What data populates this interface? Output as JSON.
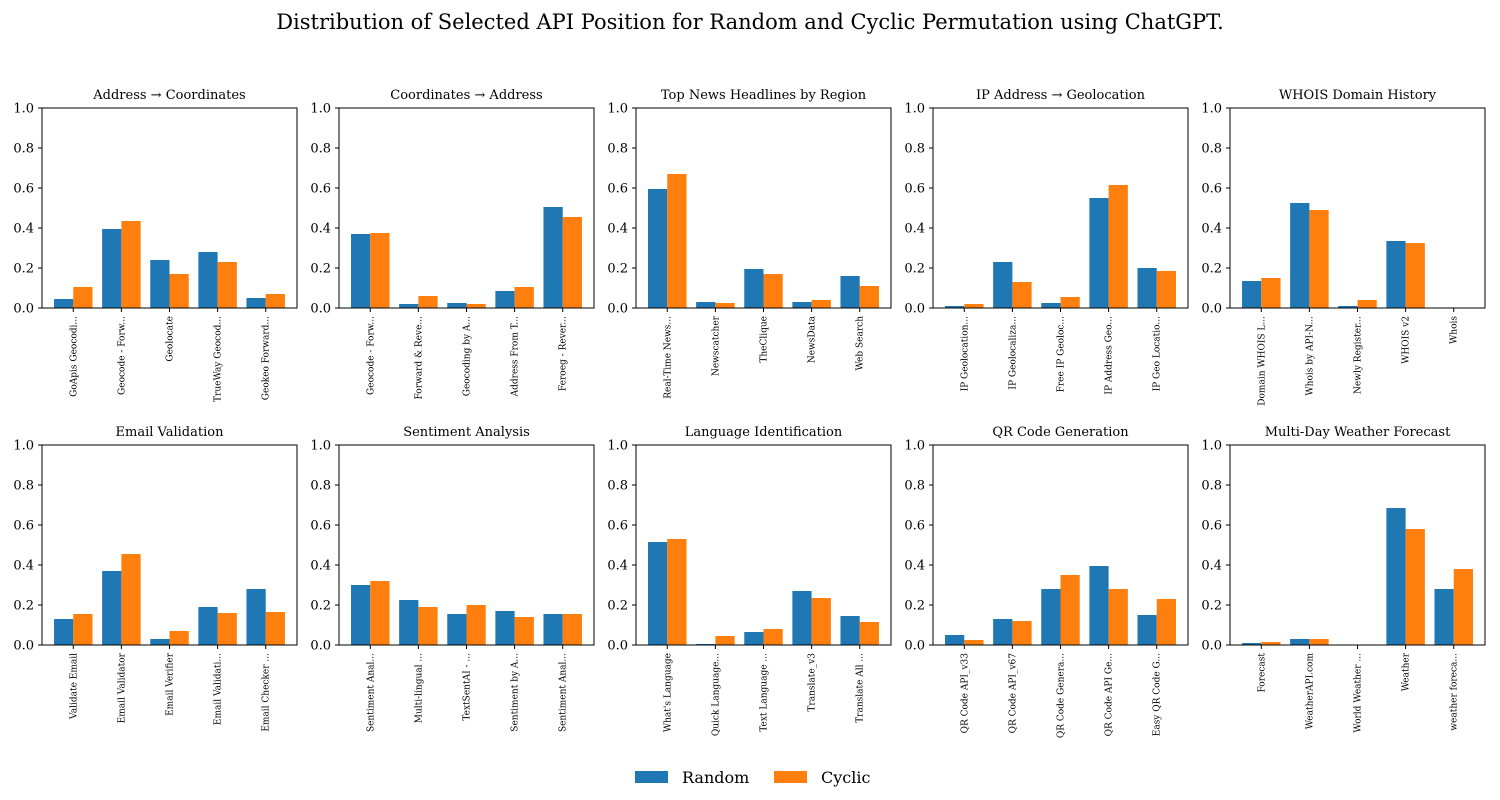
{
  "figure": {
    "title": "Distribution of Selected API Position for Random and Cyclic Permutation using ChatGPT."
  },
  "colors": {
    "random": "#1f77b4",
    "cyclic": "#ff7f0e"
  },
  "legend": {
    "items": [
      "Random",
      "Cyclic"
    ]
  },
  "chart_data": [
    {
      "type": "bar",
      "title": "Address → Coordinates",
      "categories": [
        "GoApis Geocodi...",
        "Geocode - Forw...",
        "Geolocate",
        "TrueWay Geocod...",
        "Geokeo Forward..."
      ],
      "series": [
        {
          "name": "Random",
          "values": [
            0.045,
            0.395,
            0.24,
            0.28,
            0.05
          ]
        },
        {
          "name": "Cyclic",
          "values": [
            0.105,
            0.435,
            0.17,
            0.23,
            0.07
          ]
        }
      ],
      "ylim": [
        0,
        1
      ],
      "yticks": [
        "0.0",
        "0.2",
        "0.4",
        "0.6",
        "0.8",
        "1.0"
      ]
    },
    {
      "type": "bar",
      "title": "Coordinates → Address",
      "categories": [
        "Geocode - Forw...",
        "Forward & Reve...",
        "Geocoding by A...",
        "Address From T...",
        "Feroeg - Rever..."
      ],
      "series": [
        {
          "name": "Random",
          "values": [
            0.37,
            0.02,
            0.025,
            0.085,
            0.505
          ]
        },
        {
          "name": "Cyclic",
          "values": [
            0.375,
            0.06,
            0.02,
            0.105,
            0.455
          ]
        }
      ],
      "ylim": [
        0,
        1
      ],
      "yticks": [
        "0.0",
        "0.2",
        "0.4",
        "0.6",
        "0.8",
        "1.0"
      ]
    },
    {
      "type": "bar",
      "title": "Top News Headlines by Region",
      "categories": [
        "Real-Time News...",
        "Newscatcher",
        "TheClique",
        "NewsData",
        "Web Search"
      ],
      "series": [
        {
          "name": "Random",
          "values": [
            0.595,
            0.03,
            0.195,
            0.03,
            0.16
          ]
        },
        {
          "name": "Cyclic",
          "values": [
            0.67,
            0.025,
            0.17,
            0.04,
            0.11
          ]
        }
      ],
      "ylim": [
        0,
        1
      ],
      "yticks": [
        "0.0",
        "0.2",
        "0.4",
        "0.6",
        "0.8",
        "1.0"
      ]
    },
    {
      "type": "bar",
      "title": "IP Address → Geolocation",
      "categories": [
        "IP Geolocation...",
        "IP Geolocaliza...",
        "Free IP Geoloc...",
        "IP Address Geo...",
        "IP Geo Locatio..."
      ],
      "series": [
        {
          "name": "Random",
          "values": [
            0.01,
            0.23,
            0.025,
            0.55,
            0.2
          ]
        },
        {
          "name": "Cyclic",
          "values": [
            0.02,
            0.13,
            0.055,
            0.615,
            0.185
          ]
        }
      ],
      "ylim": [
        0,
        1
      ],
      "yticks": [
        "0.0",
        "0.2",
        "0.4",
        "0.6",
        "0.8",
        "1.0"
      ]
    },
    {
      "type": "bar",
      "title": "WHOIS Domain History",
      "categories": [
        "Domain WHOIS L...",
        "Whois by API-N...",
        "Newly Register...",
        "WHOIS v2",
        "Whois"
      ],
      "series": [
        {
          "name": "Random",
          "values": [
            0.135,
            0.525,
            0.01,
            0.335,
            0.0
          ]
        },
        {
          "name": "Cyclic",
          "values": [
            0.15,
            0.49,
            0.04,
            0.325,
            0.0
          ]
        }
      ],
      "ylim": [
        0,
        1
      ],
      "yticks": [
        "0.0",
        "0.2",
        "0.4",
        "0.6",
        "0.8",
        "1.0"
      ]
    },
    {
      "type": "bar",
      "title": "Email Validation",
      "categories": [
        "Validate Email",
        "Email Validator",
        "Email Verifier",
        "Email Validati...",
        "Email Checker ..."
      ],
      "series": [
        {
          "name": "Random",
          "values": [
            0.13,
            0.37,
            0.03,
            0.19,
            0.28
          ]
        },
        {
          "name": "Cyclic",
          "values": [
            0.155,
            0.455,
            0.07,
            0.16,
            0.165
          ]
        }
      ],
      "ylim": [
        0,
        1
      ],
      "yticks": [
        "0.0",
        "0.2",
        "0.4",
        "0.6",
        "0.8",
        "1.0"
      ]
    },
    {
      "type": "bar",
      "title": "Sentiment Analysis",
      "categories": [
        "Sentiment Anal...",
        "Multi-lingual ...",
        "TextSentAI - ...",
        "Sentiment by A...",
        "Sentiment Anal..."
      ],
      "series": [
        {
          "name": "Random",
          "values": [
            0.3,
            0.225,
            0.155,
            0.17,
            0.155
          ]
        },
        {
          "name": "Cyclic",
          "values": [
            0.32,
            0.19,
            0.2,
            0.14,
            0.155
          ]
        }
      ],
      "ylim": [
        0,
        1
      ],
      "yticks": [
        "0.0",
        "0.2",
        "0.4",
        "0.6",
        "0.8",
        "1.0"
      ]
    },
    {
      "type": "bar",
      "title": "Language Identification",
      "categories": [
        "What's Language",
        "Quick Language...",
        "Text Language ...",
        "Translate_v3",
        "Translate All ..."
      ],
      "series": [
        {
          "name": "Random",
          "values": [
            0.515,
            0.005,
            0.065,
            0.27,
            0.145
          ]
        },
        {
          "name": "Cyclic",
          "values": [
            0.53,
            0.045,
            0.08,
            0.235,
            0.115
          ]
        }
      ],
      "ylim": [
        0,
        1
      ],
      "yticks": [
        "0.0",
        "0.2",
        "0.4",
        "0.6",
        "0.8",
        "1.0"
      ]
    },
    {
      "type": "bar",
      "title": "QR Code Generation",
      "categories": [
        "QR Code API_v33",
        "QR Code API_v67",
        "QR Code Genera...",
        "QR Code API Ge...",
        "Easy QR Code G..."
      ],
      "series": [
        {
          "name": "Random",
          "values": [
            0.05,
            0.13,
            0.28,
            0.395,
            0.15
          ]
        },
        {
          "name": "Cyclic",
          "values": [
            0.025,
            0.12,
            0.35,
            0.28,
            0.23
          ]
        }
      ],
      "ylim": [
        0,
        1
      ],
      "yticks": [
        "0.0",
        "0.2",
        "0.4",
        "0.6",
        "0.8",
        "1.0"
      ]
    },
    {
      "type": "bar",
      "title": "Multi-Day Weather Forecast",
      "categories": [
        "Forecast",
        "WeatherAPI.com",
        "World Weather ...",
        "Weather",
        "weather foreca..."
      ],
      "series": [
        {
          "name": "Random",
          "values": [
            0.01,
            0.03,
            0.0,
            0.685,
            0.28
          ]
        },
        {
          "name": "Cyclic",
          "values": [
            0.015,
            0.03,
            0.0,
            0.58,
            0.38
          ]
        }
      ],
      "ylim": [
        0,
        1
      ],
      "yticks": [
        "0.0",
        "0.2",
        "0.4",
        "0.6",
        "0.8",
        "1.0"
      ]
    }
  ]
}
